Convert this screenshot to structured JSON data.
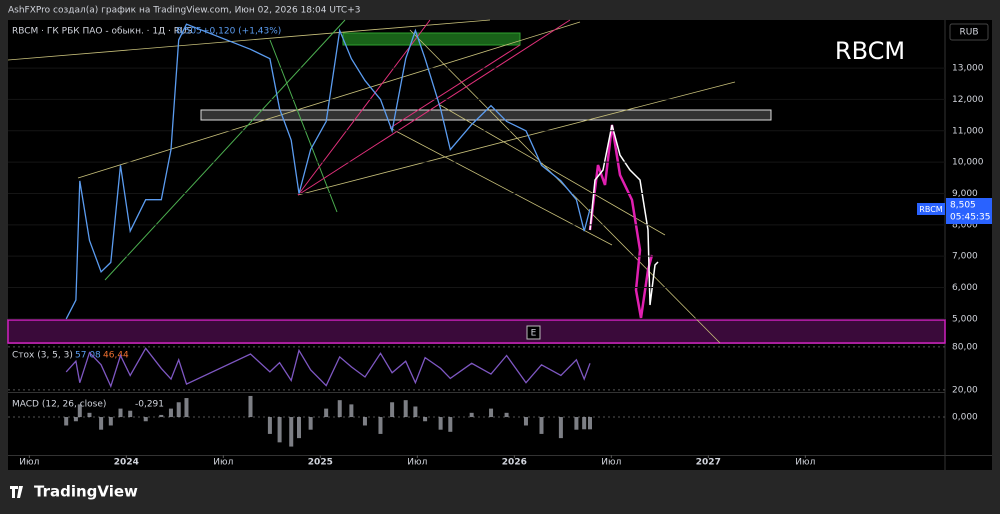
{
  "header": {
    "caption": "AshFXPro создал(а) график на TradingView.com, Июн 02, 2026 18:04 UTC+3"
  },
  "symbol": {
    "legend": "RBCM · ГК РБК ПАО - обыкн. · 1Д · RUS",
    "price": "8,505",
    "change": "+0,120 (+1,43%)",
    "watermark": "RBCM",
    "currency": "RUB",
    "tag_name": "RBCM",
    "tag_price": "8,505",
    "tag_timer": "05:45:35",
    "event_marker": "E"
  },
  "footer": {
    "logo": "TradingView"
  },
  "chart_data": [
    {
      "type": "line",
      "x": [
        2023.69,
        2023.74,
        2023.76,
        2023.81,
        2023.87,
        2023.92,
        2023.97,
        2024.02,
        2024.1,
        2024.18,
        2024.23,
        2024.27,
        2024.31,
        2024.64,
        2024.74,
        2024.79,
        2024.85,
        2024.89,
        2024.95,
        2025.03,
        2025.1,
        2025.16,
        2025.23,
        2025.31,
        2025.37,
        2025.44,
        2025.49,
        2025.54,
        2025.62,
        2025.67,
        2025.78,
        2025.88,
        2025.96,
        2026.06,
        2026.14,
        2026.24,
        2026.32,
        2026.36,
        2026.39
      ],
      "series": [
        {
          "name": "RBCM",
          "color": "#5b9cf0",
          "values": [
            5000,
            5600,
            9400,
            7500,
            6500,
            6800,
            9900,
            7800,
            8800,
            8800,
            10400,
            13900,
            14400,
            13600,
            13300,
            11700,
            10700,
            9000,
            10400,
            11300,
            14200,
            13300,
            12600,
            12000,
            11000,
            13300,
            14200,
            13300,
            11700,
            10400,
            11200,
            11800,
            11300,
            11000,
            9900,
            9400,
            8800,
            7800,
            8505
          ]
        }
      ],
      "xlim": [
        2023.39,
        2028.22
      ],
      "xticks": [
        {
          "value": 2023.5,
          "label": "Июл"
        },
        2024,
        {
          "value": 2024.5,
          "label": "Июл"
        },
        2025,
        {
          "value": 2025.5,
          "label": "Июл"
        },
        2026,
        {
          "value": 2026.5,
          "label": "Июл"
        },
        2027,
        {
          "value": 2027.5,
          "label": "Июл"
        }
      ],
      "ylim": [
        4230,
        14470
      ],
      "yticks": [
        {
          "value": 5000,
          "label": "5,000"
        },
        {
          "value": 6000,
          "label": "6,000"
        },
        {
          "value": 7000,
          "label": "7,000"
        },
        {
          "value": 8000,
          "label": "8,000"
        },
        {
          "value": 9000,
          "label": "9,000"
        },
        {
          "value": 10000,
          "label": "10,000"
        },
        {
          "value": 11000,
          "label": "11,000"
        },
        {
          "value": 12000,
          "label": "12,000"
        },
        {
          "value": 13000,
          "label": "13,000"
        }
      ]
    },
    {
      "type": "line",
      "title": "Стох (3, 5, 3)",
      "legend_values": [
        "57,08",
        "46,44"
      ],
      "x": [
        2023.69,
        2023.74,
        2023.76,
        2023.81,
        2023.87,
        2023.92,
        2023.97,
        2024.02,
        2024.1,
        2024.18,
        2024.23,
        2024.27,
        2024.31,
        2024.64,
        2024.74,
        2024.79,
        2024.85,
        2024.89,
        2024.95,
        2025.03,
        2025.1,
        2025.16,
        2025.23,
        2025.31,
        2025.37,
        2025.44,
        2025.49,
        2025.54,
        2025.62,
        2025.67,
        2025.78,
        2025.88,
        2025.96,
        2026.06,
        2026.14,
        2026.24,
        2026.32,
        2026.36,
        2026.39
      ],
      "series": [
        {
          "name": "%K",
          "color": "#7e57c2",
          "values": [
            45,
            60,
            30,
            72,
            55,
            25,
            68,
            40,
            78,
            50,
            35,
            62,
            28,
            70,
            45,
            58,
            33,
            75,
            48,
            26,
            66,
            52,
            38,
            71,
            44,
            60,
            30,
            65,
            50,
            36,
            57,
            42,
            68,
            30,
            55,
            40,
            62,
            35,
            57.08
          ]
        }
      ],
      "xlim": [
        2023.39,
        2028.22
      ],
      "ylim": [
        17,
        84
      ],
      "yticks": [
        {
          "value": 80,
          "label": "80,00"
        },
        {
          "value": 20,
          "label": "20,00"
        }
      ]
    },
    {
      "type": "bar",
      "title": "MACD (12, 26, close)",
      "legend_values": [
        "-0,291"
      ],
      "x": [
        2023.69,
        2023.74,
        2023.76,
        2023.81,
        2023.87,
        2023.92,
        2023.97,
        2024.02,
        2024.1,
        2024.18,
        2024.23,
        2024.27,
        2024.31,
        2024.64,
        2024.74,
        2024.79,
        2024.85,
        2024.89,
        2024.95,
        2025.03,
        2025.1,
        2025.16,
        2025.23,
        2025.31,
        2025.37,
        2025.44,
        2025.49,
        2025.54,
        2025.62,
        2025.67,
        2025.78,
        2025.88,
        2025.96,
        2026.06,
        2026.14,
        2026.24,
        2026.32,
        2026.36,
        2026.39
      ],
      "series": [
        {
          "name": "MACD",
          "color": "#b2b5be",
          "values": [
            -0.2,
            -0.1,
            0.3,
            0.1,
            -0.3,
            -0.2,
            0.2,
            0.15,
            -0.1,
            0.05,
            0.2,
            0.35,
            0.45,
            0.5,
            -0.4,
            -0.6,
            -0.7,
            -0.5,
            -0.3,
            0.2,
            0.4,
            0.3,
            -0.2,
            -0.4,
            0.35,
            0.4,
            0.25,
            -0.1,
            -0.3,
            -0.35,
            0.1,
            0.2,
            0.1,
            -0.2,
            -0.4,
            -0.5,
            -0.3,
            -0.29,
            -0.291
          ]
        }
      ],
      "xlim": [
        2023.39,
        2028.22
      ],
      "ylim": [
        -0.9,
        0.57
      ],
      "yticks": [
        {
          "value": 0,
          "label": "0,000"
        }
      ]
    }
  ]
}
